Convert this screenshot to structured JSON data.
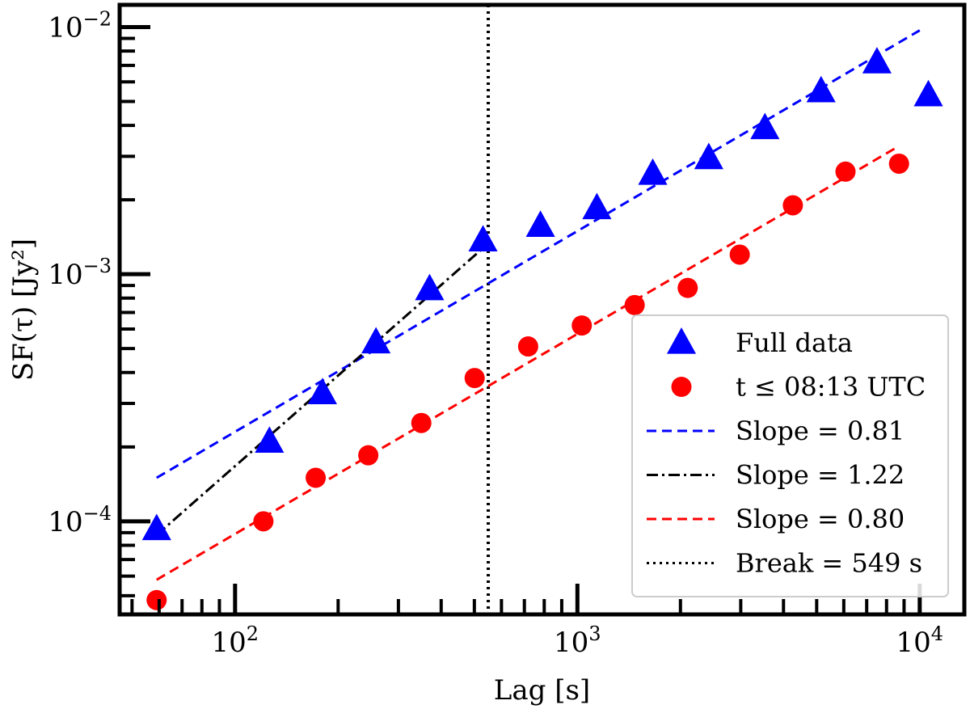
{
  "chart_data": {
    "type": "scatter",
    "xscale": "log",
    "yscale": "log",
    "xlim": [
      46,
      13500
    ],
    "ylim": [
      4.2e-05,
      0.0123
    ],
    "xlabel": "Lag [s]",
    "ylabel": "SF(τ) [Jy²]",
    "x_major_ticks": [
      {
        "value": 100,
        "base": "10",
        "exp": "2"
      },
      {
        "value": 1000,
        "base": "10",
        "exp": "3"
      },
      {
        "value": 10000,
        "base": "10",
        "exp": "4"
      }
    ],
    "y_major_ticks": [
      {
        "value": 0.0001,
        "base": "10",
        "exp": "−4"
      },
      {
        "value": 0.001,
        "base": "10",
        "exp": "−3"
      },
      {
        "value": 0.01,
        "base": "10",
        "exp": "−2"
      }
    ],
    "series": [
      {
        "name": "Full data",
        "marker": "triangle",
        "color": "#0000ff",
        "x": [
          59,
          126,
          180,
          258,
          370,
          530,
          780,
          1140,
          1660,
          2420,
          3530,
          5150,
          7500,
          10600
        ],
        "y": [
          9.3e-05,
          0.00021,
          0.00033,
          0.00053,
          0.00087,
          0.00137,
          0.00157,
          0.00185,
          0.00255,
          0.00295,
          0.0039,
          0.0055,
          0.0072,
          0.0053
        ]
      },
      {
        "name": "t ≤ 08:13 UTC",
        "marker": "circle",
        "color": "#ff0000",
        "x": [
          59,
          121,
          172,
          245,
          350,
          501,
          718,
          1030,
          1470,
          2100,
          2980,
          4260,
          6070,
          8700
        ],
        "y": [
          4.8e-05,
          0.0001,
          0.00015,
          0.000185,
          0.00025,
          0.00038,
          0.00051,
          0.00062,
          0.00075,
          0.00088,
          0.0012,
          0.0019,
          0.0026,
          0.0028
        ]
      }
    ],
    "fit_lines": [
      {
        "name": "Slope = 0.81",
        "style": "dashed",
        "color": "#0000ff",
        "x": [
          59,
          10000
        ],
        "y": [
          0.00015,
          0.0097
        ]
      },
      {
        "name": "Slope = 1.22",
        "style": "dashdot",
        "color": "#000000",
        "x": [
          59,
          549
        ],
        "y": [
          8.8e-05,
          0.00133
        ]
      },
      {
        "name": "Slope = 0.80",
        "style": "dashed",
        "color": "#ff0000",
        "x": [
          59,
          8700
        ],
        "y": [
          5.8e-05,
          0.0033
        ]
      }
    ],
    "vlines": [
      {
        "name": "Break = 549 s",
        "style": "dotted",
        "color": "#000000",
        "x": 549
      }
    ],
    "legend": {
      "position": "bottom-right",
      "entries": [
        {
          "type": "marker",
          "marker": "triangle",
          "color": "#0000ff",
          "label": "Full data"
        },
        {
          "type": "marker",
          "marker": "circle",
          "color": "#ff0000",
          "label": "t ≤ 08:13 UTC"
        },
        {
          "type": "line",
          "style": "dashed",
          "color": "#0000ff",
          "label": "Slope = 0.81"
        },
        {
          "type": "line",
          "style": "dashdot",
          "color": "#000000",
          "label": "Slope = 1.22"
        },
        {
          "type": "line",
          "style": "dashed",
          "color": "#ff0000",
          "label": "Slope = 0.80"
        },
        {
          "type": "line",
          "style": "dotted",
          "color": "#000000",
          "label": "Break = 549 s"
        }
      ]
    }
  }
}
